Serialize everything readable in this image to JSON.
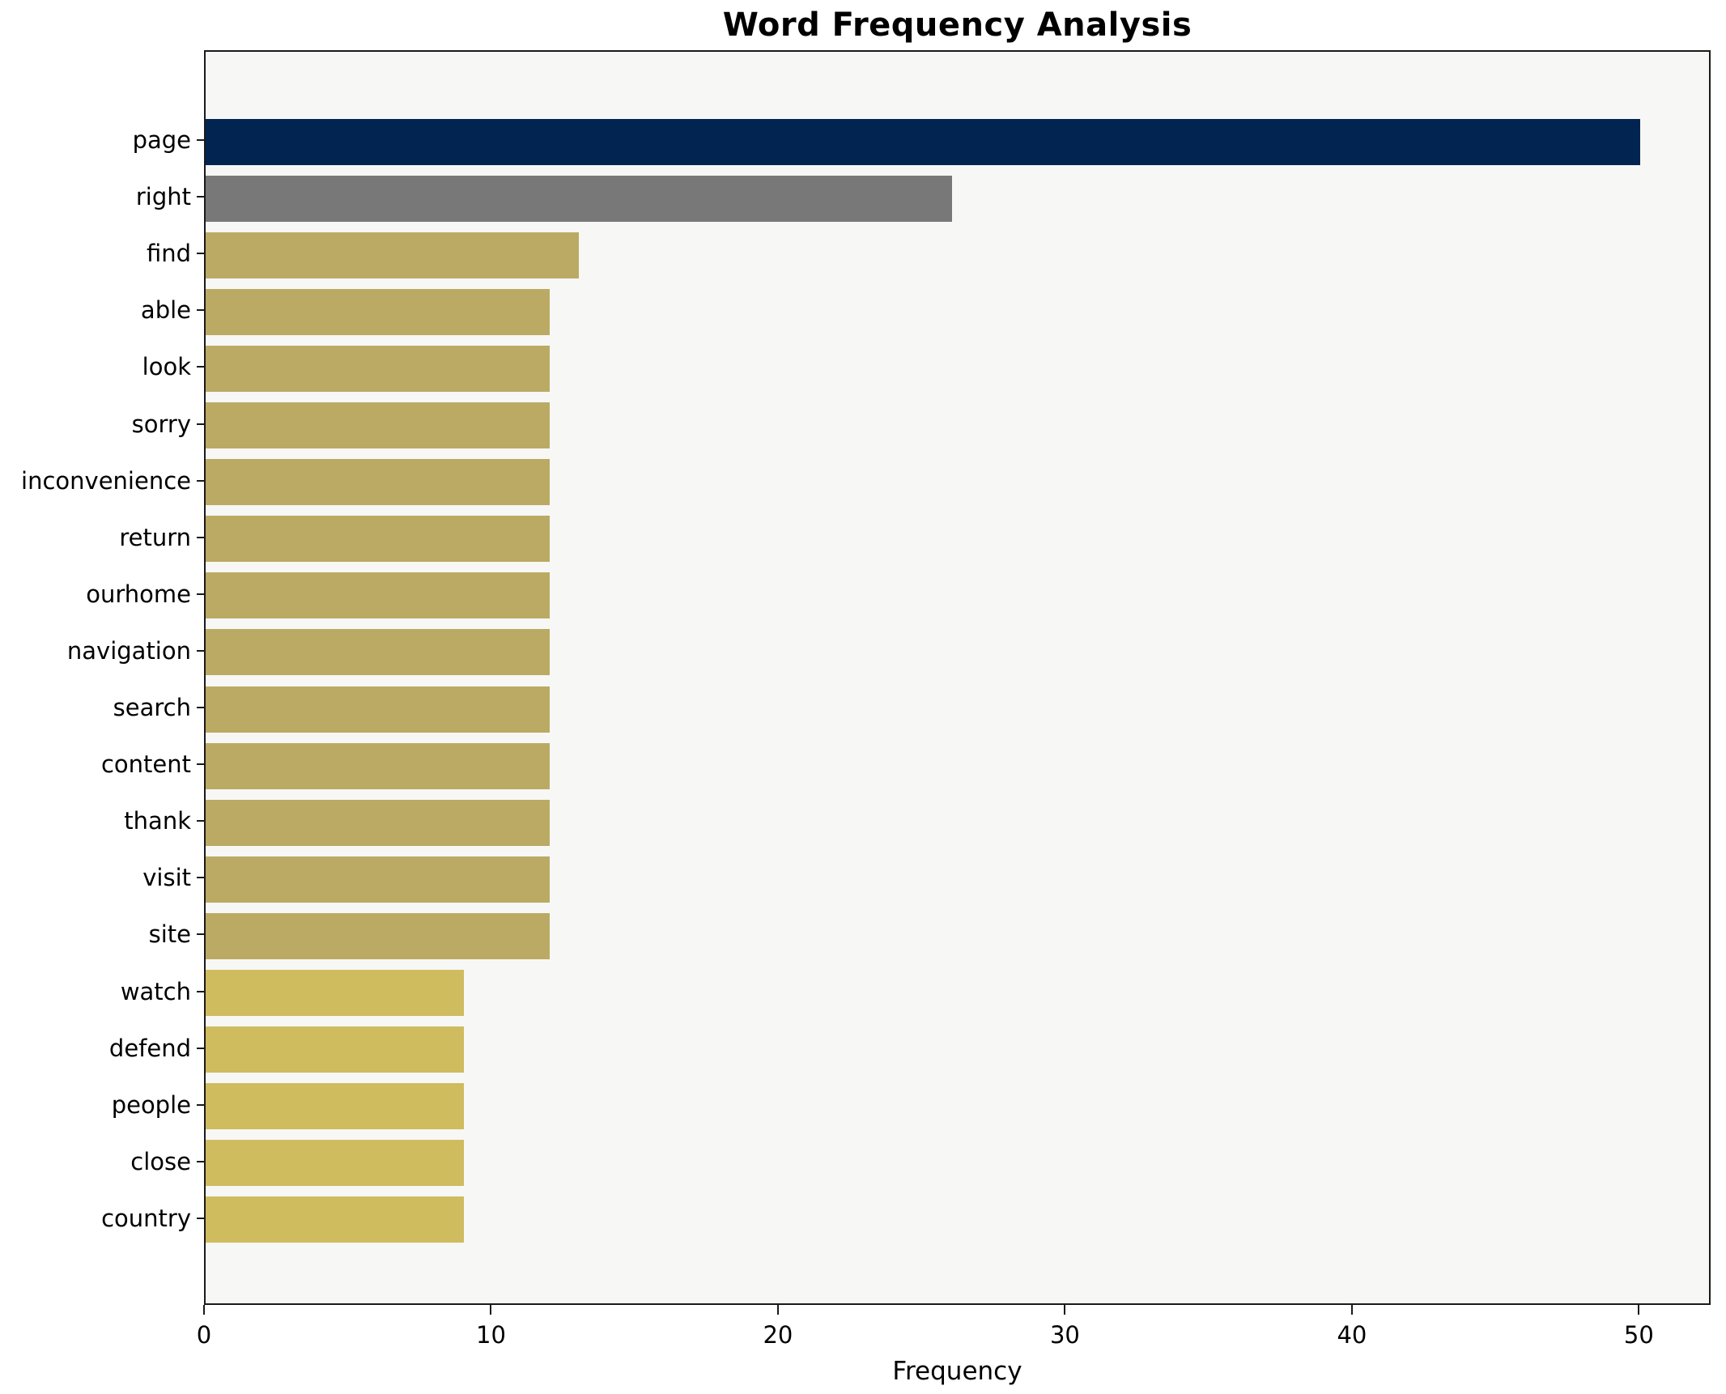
{
  "chart_data": {
    "type": "bar",
    "orientation": "horizontal",
    "title": "Word Frequency Analysis",
    "xlabel": "Frequency",
    "ylabel": "",
    "categories": [
      "page",
      "right",
      "find",
      "able",
      "look",
      "sorry",
      "inconvenience",
      "return",
      "ourhome",
      "navigation",
      "search",
      "content",
      "thank",
      "visit",
      "site",
      "watch",
      "defend",
      "people",
      "close",
      "country"
    ],
    "values": [
      50,
      26,
      13,
      12,
      12,
      12,
      12,
      12,
      12,
      12,
      12,
      12,
      12,
      12,
      12,
      9,
      9,
      9,
      9,
      9
    ],
    "bar_colors": [
      "#022450",
      "#787878",
      "#bbaa64",
      "#bbaa64",
      "#bbaa64",
      "#bbaa64",
      "#bbaa64",
      "#bbaa64",
      "#bbaa64",
      "#bbaa64",
      "#bbaa64",
      "#bbaa64",
      "#bbaa64",
      "#bbaa64",
      "#bbaa64",
      "#cebc5e",
      "#cebc5e",
      "#cebc5e",
      "#cebc5e",
      "#cebc5e"
    ],
    "xlim": [
      0,
      52.5
    ],
    "x_ticks": [
      0,
      10,
      20,
      30,
      40,
      50
    ],
    "grid": false,
    "legend": null,
    "colors": {
      "navy": "#022450",
      "gray": "#787878",
      "dark_khaki": "#bbaa64",
      "light_khaki": "#cebc5e",
      "plot_background": "#f7f7f6",
      "figure_background": "#ffffff",
      "spine": "#1a1a1a",
      "text": "#000000"
    }
  }
}
